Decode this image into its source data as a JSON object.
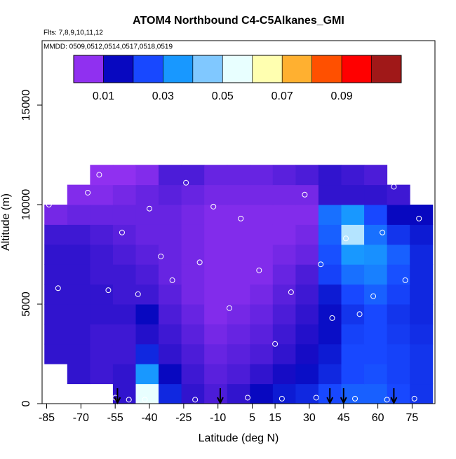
{
  "chart_data": {
    "type": "heatmap",
    "title": "ATOM4 Northbound C4-C5Alkanes_GMI",
    "subtitle": "Flts: 7,8,9,10,11,12",
    "annotation": "MMDD: 0509,0512,0514,0517,0518,0519",
    "x_label": "Latitude (deg N)",
    "y_label": "Altitude (m)",
    "xlim": [
      -87,
      85
    ],
    "ylim": [
      0,
      18240
    ],
    "xticks": [
      -85,
      -70,
      -55,
      -40,
      -25,
      -10,
      5,
      15,
      30,
      45,
      60,
      75
    ],
    "yticks": [
      0,
      5000,
      10000,
      15000
    ],
    "x_edges": [
      -86,
      -76,
      -66,
      -56,
      -46,
      -36,
      -26,
      -16,
      -6,
      4,
      14,
      24,
      34,
      44,
      54,
      64,
      74,
      84
    ],
    "y_edges": [
      0,
      1000,
      2000,
      3000,
      4000,
      5000,
      6000,
      7000,
      8000,
      9000,
      10000,
      11000,
      12000
    ],
    "values": [
      [
        null,
        null,
        null,
        0.012,
        0.055,
        0.02,
        0.012,
        0.01,
        0.012,
        0.015,
        0.018,
        0.02,
        0.025,
        0.028,
        0.028,
        0.025,
        0.022
      ],
      [
        null,
        0.012,
        0.011,
        0.012,
        0.035,
        0.015,
        0.011,
        0.009,
        0.01,
        0.012,
        0.014,
        0.016,
        0.02,
        0.025,
        0.026,
        0.024,
        0.022
      ],
      [
        0.012,
        0.012,
        0.011,
        0.011,
        0.02,
        0.012,
        0.01,
        0.008,
        0.009,
        0.01,
        0.012,
        0.014,
        0.018,
        0.025,
        0.025,
        0.024,
        0.022
      ],
      [
        0.012,
        0.012,
        0.011,
        0.011,
        0.013,
        0.011,
        0.009,
        0.007,
        0.008,
        0.009,
        0.011,
        0.013,
        0.016,
        0.024,
        0.025,
        0.023,
        0.021
      ],
      [
        0.012,
        0.012,
        0.012,
        0.012,
        0.015,
        0.01,
        0.008,
        0.006,
        0.007,
        0.008,
        0.01,
        0.012,
        0.016,
        0.022,
        0.025,
        0.022,
        0.02
      ],
      [
        0.012,
        0.012,
        0.012,
        0.011,
        0.011,
        0.009,
        0.007,
        0.006,
        0.006,
        0.007,
        0.009,
        0.011,
        0.018,
        0.025,
        0.028,
        0.024,
        0.02
      ],
      [
        0.012,
        0.012,
        0.011,
        0.011,
        0.01,
        0.008,
        0.007,
        0.006,
        0.006,
        0.006,
        0.008,
        0.01,
        0.024,
        0.03,
        0.032,
        0.026,
        0.02
      ],
      [
        0.012,
        0.012,
        0.011,
        0.01,
        0.009,
        0.008,
        0.007,
        0.006,
        0.006,
        0.006,
        0.007,
        0.008,
        0.026,
        0.035,
        0.034,
        0.028,
        0.02
      ],
      [
        0.011,
        0.011,
        0.01,
        0.009,
        0.008,
        0.008,
        0.007,
        0.006,
        0.006,
        0.006,
        0.006,
        0.007,
        0.028,
        0.05,
        0.03,
        0.022,
        0.018
      ],
      [
        0.007,
        0.008,
        0.008,
        0.008,
        0.008,
        0.008,
        0.007,
        0.006,
        0.006,
        0.006,
        0.006,
        0.006,
        0.03,
        0.035,
        0.025,
        0.015,
        0.015
      ],
      [
        null,
        0.006,
        0.006,
        0.007,
        0.008,
        0.009,
        0.008,
        0.007,
        0.007,
        0.007,
        0.007,
        0.007,
        0.012,
        0.012,
        0.012,
        0.011,
        null
      ],
      [
        null,
        null,
        0.004,
        0.004,
        0.006,
        0.01,
        0.01,
        0.008,
        0.008,
        0.008,
        0.009,
        0.01,
        0.012,
        0.011,
        0.01,
        null,
        null
      ]
    ],
    "colorbar": {
      "lim": [
        0,
        0.11
      ],
      "ticks": [
        0.01,
        0.03,
        0.05,
        0.07,
        0.09
      ],
      "colors": [
        "#9030f0",
        "#0808c0",
        "#1848ff",
        "#1898ff",
        "#80c8ff",
        "#e8ffff",
        "#ffffb0",
        "#ffb030",
        "#ff5000",
        "#ff0000",
        "#a01818"
      ]
    },
    "points": {
      "x": [
        -84,
        -80,
        -72,
        -67,
        -62,
        -58,
        -52,
        -49,
        -45,
        -40,
        -35,
        -30,
        -24,
        -18,
        -12,
        -5,
        0,
        8,
        15,
        22,
        28,
        35,
        40,
        46,
        52,
        58,
        62,
        67,
        72,
        78,
        -78,
        -55,
        -42,
        -20,
        3,
        18,
        33,
        50,
        64,
        76
      ],
      "y": [
        10000,
        5800,
        11300,
        10600,
        11500,
        5700,
        8600,
        200,
        5500,
        9800,
        7400,
        6200,
        11100,
        7100,
        9900,
        4800,
        9300,
        6700,
        3000,
        5600,
        10500,
        7000,
        4300,
        8300,
        4500,
        5400,
        8600,
        10900,
        6200,
        9300,
        1300,
        300,
        200,
        200,
        300,
        250,
        300,
        250,
        200,
        250
      ]
    },
    "arrows": [
      -54,
      -9,
      39,
      45,
      67
    ]
  }
}
